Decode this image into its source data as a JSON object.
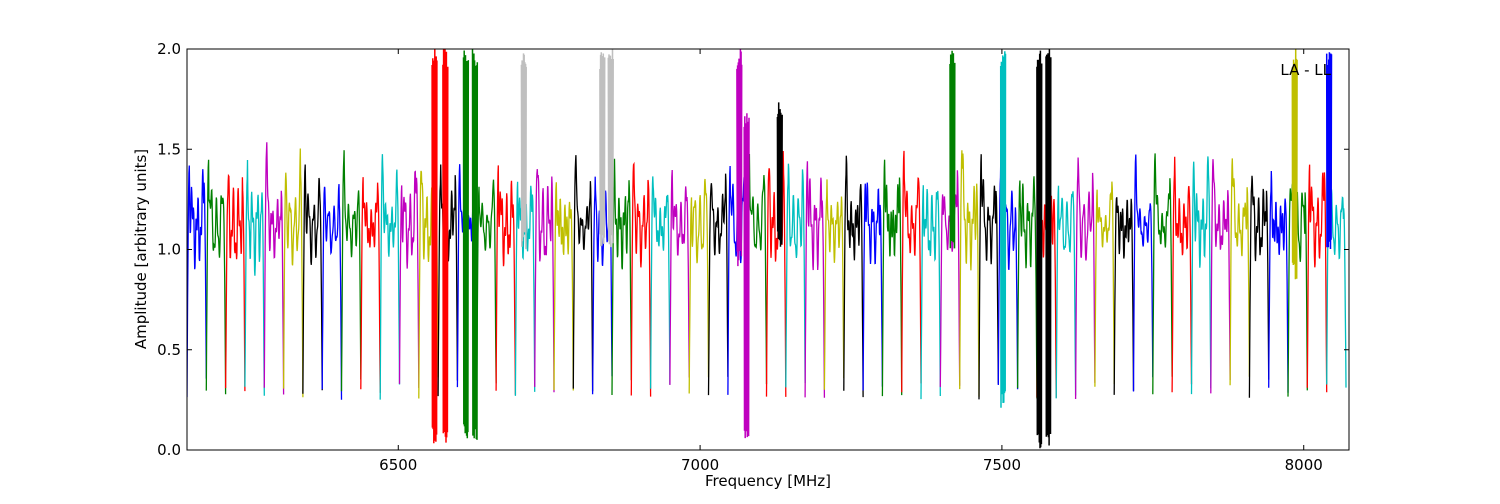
{
  "chart_data": {
    "type": "line",
    "title": "",
    "xlabel": "Frequency [MHz]",
    "ylabel": "Amplitude [arbitrary units]",
    "annotation": "LA - LL",
    "xlim": [
      6150,
      8075
    ],
    "ylim": [
      0,
      2.0
    ],
    "x_ticks": [
      6500,
      7000,
      7500,
      8000
    ],
    "y_ticks": [
      0.0,
      0.5,
      1.0,
      1.5,
      2.0
    ],
    "x_tick_labels": [
      "6500",
      "7000",
      "7500",
      "8000"
    ],
    "y_tick_labels": [
      "0.0",
      "0.5",
      "1.0",
      "1.5",
      "2.0"
    ],
    "grid": false,
    "legend": "none",
    "subband_width_mhz": 32,
    "subband_count": 60,
    "subband_start_mhz": 6150,
    "color_cycle": [
      "#0000ff",
      "#008000",
      "#ff0000",
      "#00bfbf",
      "#bf00bf",
      "#bfbf00",
      "#000000"
    ],
    "flagged_color": "#bfbfbf",
    "typical_profile": {
      "edge_min": 0.25,
      "center_level": 1.15,
      "ripple_peak": 1.35
    },
    "rfi_spikes": [
      {
        "x": 6560,
        "ymin": 0.03,
        "ymax": 2.0,
        "color": "#ff0000"
      },
      {
        "x": 6578,
        "ymin": 0.03,
        "ymax": 2.0,
        "color": "#ff0000"
      },
      {
        "x": 6612,
        "ymin": 0.04,
        "ymax": 2.0,
        "color": "#008000"
      },
      {
        "x": 6627,
        "ymin": 0.04,
        "ymax": 2.0,
        "color": "#008000"
      },
      {
        "x": 6708,
        "ymin": 1.0,
        "ymax": 2.0,
        "color": "#bfbfbf"
      },
      {
        "x": 6838,
        "ymin": 1.0,
        "ymax": 2.0,
        "color": "#bfbfbf"
      },
      {
        "x": 6852,
        "ymin": 1.0,
        "ymax": 2.0,
        "color": "#bfbfbf"
      },
      {
        "x": 7065,
        "ymin": 0.9,
        "ymax": 2.0,
        "color": "#bf00bf"
      },
      {
        "x": 7077,
        "ymin": 0.03,
        "ymax": 1.7,
        "color": "#bf00bf"
      },
      {
        "x": 7132,
        "ymin": 1.0,
        "ymax": 1.75,
        "color": "#000000"
      },
      {
        "x": 7418,
        "ymin": 1.0,
        "ymax": 2.0,
        "color": "#008000"
      },
      {
        "x": 7502,
        "ymin": 0.2,
        "ymax": 2.0,
        "color": "#00bfbf"
      },
      {
        "x": 7562,
        "ymin": 0.0,
        "ymax": 2.0,
        "color": "#000000"
      },
      {
        "x": 7577,
        "ymin": 0.0,
        "ymax": 2.0,
        "color": "#000000"
      },
      {
        "x": 7985,
        "ymin": 0.85,
        "ymax": 2.0,
        "color": "#bfbf00"
      },
      {
        "x": 8042,
        "ymin": 1.0,
        "ymax": 2.0,
        "color": "#0000ff"
      }
    ]
  }
}
